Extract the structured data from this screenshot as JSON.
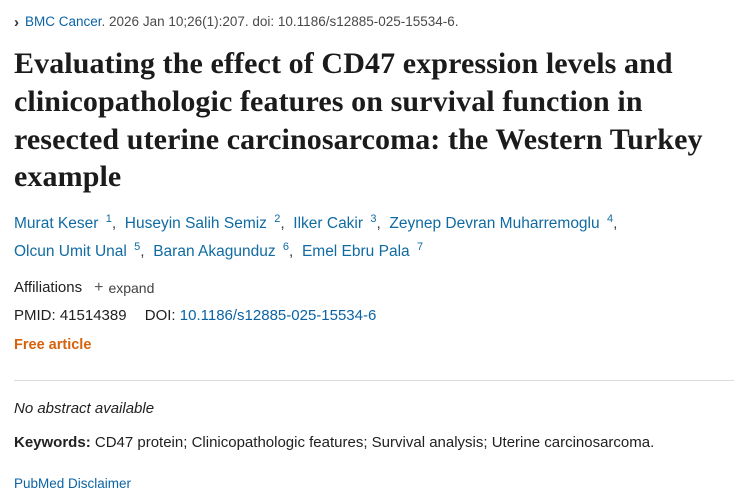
{
  "colors": {
    "link": "#0b63a5",
    "author_link": "#106ba3",
    "free_article": "#d5620c",
    "chevron": "#2e3440"
  },
  "citation": {
    "chevron_glyph": "›",
    "journal": "BMC Cancer",
    "rest": ". 2026 Jan 10;26(1):207. doi: 10.1186/s12885-025-15534-6."
  },
  "title": "Evaluating the effect of CD47 expression levels and clinicopathologic features on survival function in resected uterine carcinosarcoma: the Western Turkey example",
  "authors": [
    {
      "name": "Murat Keser",
      "sup": "1"
    },
    {
      "name": "Huseyin Salih Semiz",
      "sup": "2"
    },
    {
      "name": "Ilker Cakir",
      "sup": "3"
    },
    {
      "name": "Zeynep Devran Muharremoglu",
      "sup": "4"
    },
    {
      "name": "Olcun Umit Unal",
      "sup": "5"
    },
    {
      "name": "Baran Akagunduz",
      "sup": "6"
    },
    {
      "name": "Emel Ebru Pala",
      "sup": "7"
    }
  ],
  "affiliations": {
    "label": "Affiliations",
    "expand_icon": "+",
    "expand_label": "expand"
  },
  "identifiers": {
    "pmid_label": "PMID:",
    "pmid": "41514389",
    "doi_label": "DOI:",
    "doi": "10.1186/s12885-025-15534-6"
  },
  "free_article_label": "Free article",
  "abstract_status": "No abstract available",
  "keywords": {
    "label": "Keywords:",
    "text": " CD47 protein; Clinicopathologic features; Survival analysis; Uterine carcinosarcoma."
  },
  "footer": {
    "disclaimer": "PubMed Disclaimer"
  }
}
